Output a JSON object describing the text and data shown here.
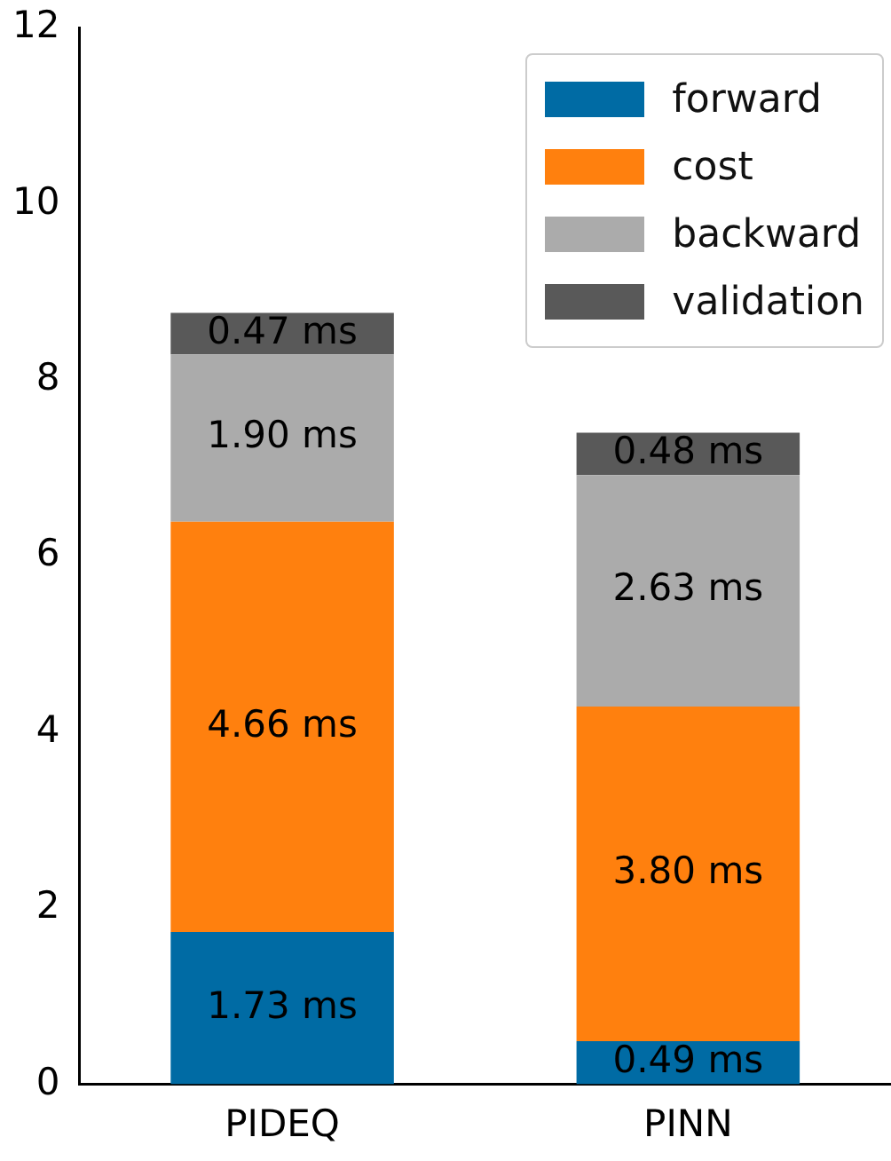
{
  "chart_data": {
    "type": "bar",
    "stacked": true,
    "categories": [
      "PIDEQ",
      "PINN"
    ],
    "series": [
      {
        "name": "forward",
        "color": "#006ba4",
        "values": [
          1.73,
          0.49
        ],
        "value_labels": [
          "1.73 ms",
          "0.49 ms"
        ]
      },
      {
        "name": "cost",
        "color": "#ff800e",
        "values": [
          4.66,
          3.8
        ],
        "value_labels": [
          "4.66 ms",
          "3.80 ms"
        ]
      },
      {
        "name": "backward",
        "color": "#ababab",
        "values": [
          1.9,
          2.63
        ],
        "value_labels": [
          "1.90 ms",
          "2.63 ms"
        ]
      },
      {
        "name": "validation",
        "color": "#595959",
        "values": [
          0.47,
          0.48
        ],
        "value_labels": [
          "0.47 ms",
          "0.48 ms"
        ]
      }
    ],
    "ylim": [
      0,
      12
    ],
    "yticks": [
      0,
      2,
      4,
      6,
      8,
      10,
      12
    ],
    "grid": false,
    "legend": "top right"
  }
}
